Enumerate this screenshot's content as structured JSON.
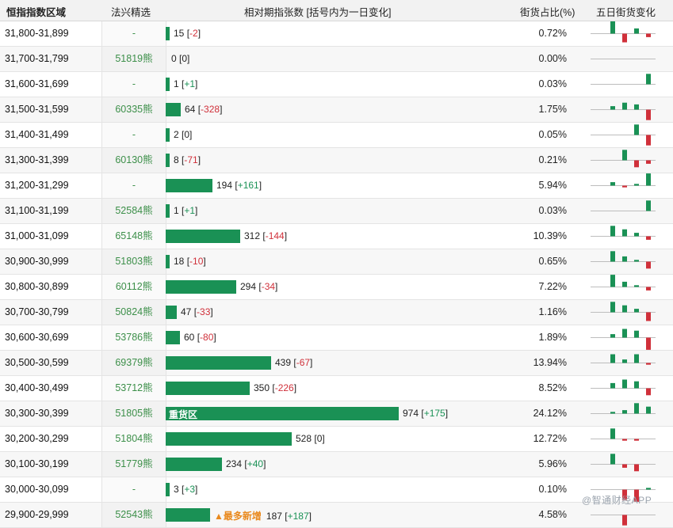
{
  "header": {
    "range_label": "恒指指数区域",
    "pick_label": "法兴精选",
    "relative_label": "相对期指张数 [括号内为一日变化]",
    "pct_label": "街货占比(%)",
    "five_day_label": "五日街货变化"
  },
  "colors": {
    "bar": "#1a9155",
    "up": "#1a9155",
    "down": "#d0303a",
    "pick": "#3c8f49",
    "highlight": "#e9891d"
  },
  "rows": [
    {
      "range": "31,800-31,899",
      "pick": "-",
      "value": 15,
      "change": "-2",
      "pct": "0.72%",
      "five_day": [
        0,
        8,
        -5,
        3,
        -2
      ]
    },
    {
      "range": "31,700-31,799",
      "pick": "51819熊",
      "value": 0,
      "change": "0",
      "pct": "0.00%",
      "five_day": [
        0,
        0,
        0,
        0,
        0
      ]
    },
    {
      "range": "31,600-31,699",
      "pick": "-",
      "value": 1,
      "change": "+1",
      "pct": "0.03%",
      "five_day": [
        0,
        0,
        0,
        0,
        6
      ]
    },
    {
      "range": "31,500-31,599",
      "pick": "60335熊",
      "value": 64,
      "change": "-328",
      "pct": "1.75%",
      "five_day": [
        0,
        2,
        4,
        3,
        -6
      ]
    },
    {
      "range": "31,400-31,499",
      "pick": "-",
      "value": 2,
      "change": "0",
      "pct": "0.05%",
      "five_day": [
        0,
        0,
        0,
        6,
        -6
      ]
    },
    {
      "range": "31,300-31,399",
      "pick": "60130熊",
      "value": 8,
      "change": "-71",
      "pct": "0.21%",
      "five_day": [
        0,
        0,
        6,
        -4,
        -2
      ]
    },
    {
      "range": "31,200-31,299",
      "pick": "-",
      "value": 194,
      "change": "+161",
      "pct": "5.94%",
      "five_day": [
        0,
        2,
        -1,
        1,
        7
      ]
    },
    {
      "range": "31,100-31,199",
      "pick": "52584熊",
      "value": 1,
      "change": "+1",
      "pct": "0.03%",
      "five_day": [
        0,
        0,
        0,
        0,
        6
      ]
    },
    {
      "range": "31,000-31,099",
      "pick": "65148熊",
      "value": 312,
      "change": "-144",
      "pct": "10.39%",
      "five_day": [
        0,
        6,
        4,
        2,
        -2
      ]
    },
    {
      "range": "30,900-30,999",
      "pick": "51803熊",
      "value": 18,
      "change": "-10",
      "pct": "0.65%",
      "five_day": [
        0,
        6,
        3,
        1,
        -4
      ]
    },
    {
      "range": "30,800-30,899",
      "pick": "60112熊",
      "value": 294,
      "change": "-34",
      "pct": "7.22%",
      "five_day": [
        0,
        7,
        3,
        1,
        -2
      ]
    },
    {
      "range": "30,700-30,799",
      "pick": "50824熊",
      "value": 47,
      "change": "-33",
      "pct": "1.16%",
      "five_day": [
        0,
        6,
        4,
        2,
        -5
      ]
    },
    {
      "range": "30,600-30,699",
      "pick": "53786熊",
      "value": 60,
      "change": "-80",
      "pct": "1.89%",
      "five_day": [
        0,
        2,
        5,
        4,
        -7
      ]
    },
    {
      "range": "30,500-30,599",
      "pick": "69379熊",
      "value": 439,
      "change": "-67",
      "pct": "13.94%",
      "five_day": [
        0,
        5,
        2,
        5,
        -1
      ]
    },
    {
      "range": "30,400-30,499",
      "pick": "53712熊",
      "value": 350,
      "change": "-226",
      "pct": "8.52%",
      "five_day": [
        0,
        3,
        5,
        4,
        -4
      ]
    },
    {
      "range": "30,300-30,399",
      "pick": "51805熊",
      "value": 974,
      "change": "+175",
      "pct": "24.12%",
      "five_day": [
        0,
        1,
        2,
        6,
        4
      ],
      "bar_label": "重货区"
    },
    {
      "range": "30,200-30,299",
      "pick": "51804熊",
      "value": 528,
      "change": "0",
      "pct": "12.72%",
      "five_day": [
        0,
        6,
        -1,
        -1,
        0
      ]
    },
    {
      "range": "30,100-30,199",
      "pick": "51779熊",
      "value": 234,
      "change": "+40",
      "pct": "5.96%",
      "five_day": [
        0,
        6,
        -2,
        -4,
        0
      ]
    },
    {
      "range": "30,000-30,099",
      "pick": "-",
      "value": 3,
      "change": "+3",
      "pct": "0.10%",
      "five_day": [
        0,
        0,
        -6,
        -7,
        1
      ]
    },
    {
      "range": "29,900-29,999",
      "pick": "52543熊",
      "value": 187,
      "change": "+187",
      "pct": "4.58%",
      "five_day": [
        0,
        0,
        -6,
        0,
        0
      ],
      "new_tag": "▲最多新增"
    }
  ],
  "watermark": "@智通财经APP",
  "max_value": 974
}
